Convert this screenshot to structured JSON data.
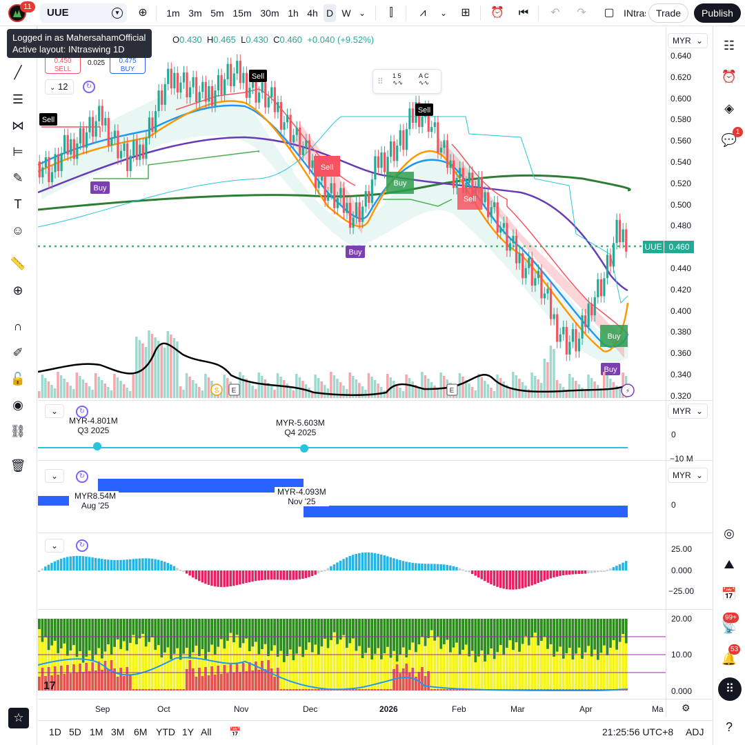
{
  "header": {
    "notification_count": "11",
    "symbol": "UUE",
    "timeframes": [
      "1m",
      "3m",
      "5m",
      "15m",
      "30m",
      "1h",
      "4h",
      "D",
      "W"
    ],
    "active_timeframe": "D",
    "layout_name": "INtraswing",
    "trade_label": "Trade",
    "publish_label": "Publish"
  },
  "tooltip": {
    "line1": "Logged in as MahersahamOfficial",
    "line2": "Active layout: INtraswing 1D"
  },
  "ohlc": {
    "o_label": "O",
    "o_value": "0.430",
    "h_label": "H",
    "h_value": "0.465",
    "l_label": "L",
    "l_value": "0.430",
    "c_label": "C",
    "c_value": "0.460",
    "change": "+0.040 (+9.52%)"
  },
  "order_panel": {
    "sell_price": "0.450",
    "sell_label": "SELL",
    "spread": "0.025",
    "buy_price": "0.475",
    "buy_label": "BUY"
  },
  "interval_value": "12",
  "currency": "MYR",
  "price_axis": [
    "0.640",
    "0.620",
    "0.600",
    "0.580",
    "0.560",
    "0.540",
    "0.520",
    "0.500",
    "0.480",
    "0.460",
    "0.440",
    "0.420",
    "0.400",
    "0.380",
    "0.360",
    "0.340",
    "0.320"
  ],
  "current_price": {
    "symbol": "UUE",
    "value": "0.460"
  },
  "signals": {
    "sell": "Sell",
    "buy": "Buy",
    "events": [
      "S",
      "E",
      "E"
    ]
  },
  "pane2": {
    "currency": "MYR",
    "axis": [
      "0",
      "−10 M"
    ],
    "points": [
      {
        "value": "MYR-4.801M",
        "period": "Q3 2025"
      },
      {
        "value": "MYR-5.603M",
        "period": "Q4 2025"
      }
    ]
  },
  "pane3": {
    "currency": "MYR",
    "axis": [
      "0"
    ],
    "points": [
      {
        "value": "MYR8.54M",
        "period": "Aug '25"
      },
      {
        "value": "MYR-4.093M",
        "period": "Nov '25"
      }
    ]
  },
  "pane4": {
    "axis": [
      "25.00",
      "0.000",
      "−25.00"
    ]
  },
  "pane5": {
    "axis": [
      "20.00",
      "10.00",
      "0.000"
    ]
  },
  "time_axis": [
    "Sep",
    "Oct",
    "Nov",
    "Dec",
    "2026",
    "Feb",
    "Mar",
    "Apr",
    "Ma"
  ],
  "bottom": {
    "ranges": [
      "1D",
      "5D",
      "1M",
      "3M",
      "6M",
      "YTD",
      "1Y",
      "All"
    ],
    "clock": "21:25:56 UTC+8",
    "adj": "ADJ"
  },
  "right_badges": {
    "chat": "1",
    "ideas": "99+",
    "alerts": "53"
  },
  "colors": {
    "up": "#22ab94",
    "down": "#f7525f",
    "accent": "#2962ff",
    "signal": "#7b3fb0"
  },
  "chart_data": {
    "type": "candlestick",
    "symbol": "UUE",
    "price_range": [
      0.32,
      0.64
    ],
    "close_series": [
      0.53,
      0.52,
      0.54,
      0.55,
      0.56,
      0.57,
      0.55,
      0.53,
      0.54,
      0.57,
      0.6,
      0.61,
      0.6,
      0.59,
      0.6,
      0.61,
      0.61,
      0.6,
      0.59,
      0.58,
      0.56,
      0.54,
      0.52,
      0.5,
      0.49,
      0.48,
      0.49,
      0.53,
      0.54,
      0.55,
      0.58,
      0.57,
      0.54,
      0.52,
      0.51,
      0.5,
      0.49,
      0.46,
      0.44,
      0.43,
      0.41,
      0.38,
      0.36,
      0.36,
      0.4,
      0.42,
      0.46
    ]
  }
}
